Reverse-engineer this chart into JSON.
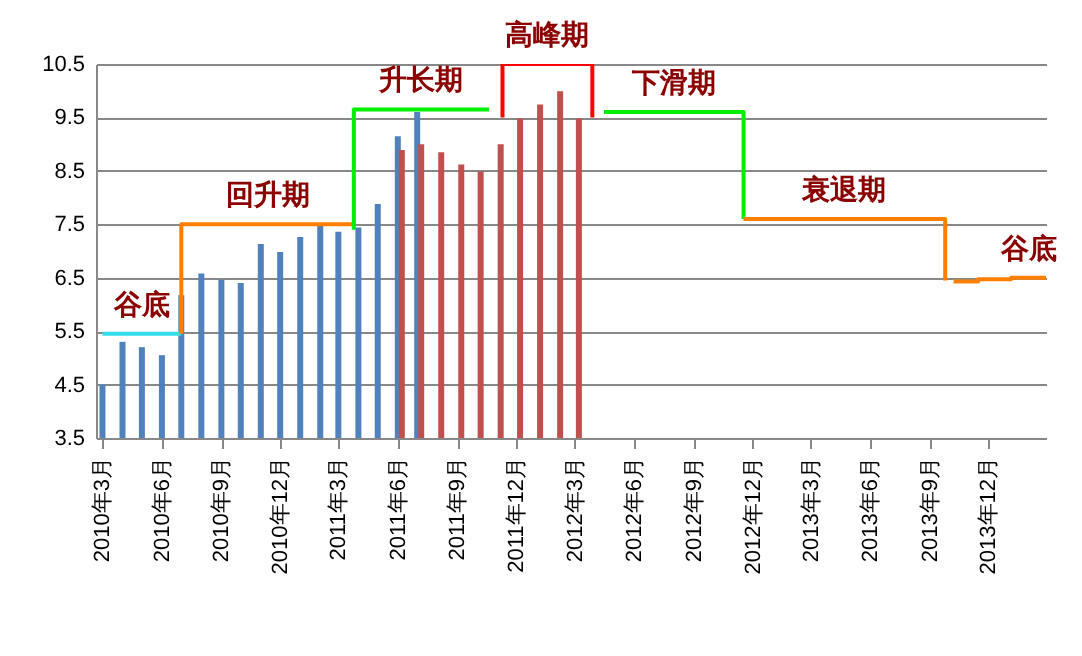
{
  "chart_data": {
    "type": "bar",
    "xlim": [
      "2010-02-19",
      "2014-02-28"
    ],
    "ylim": [
      3.5,
      10.5
    ],
    "yticks": [
      3.5,
      4.5,
      5.5,
      6.5,
      7.5,
      8.5,
      9.5,
      10.5
    ],
    "xticks": [
      {
        "value": "2010-03",
        "label": "2010年3月"
      },
      {
        "value": "2010-06",
        "label": "2010年6月"
      },
      {
        "value": "2010-09",
        "label": "2010年9月"
      },
      {
        "value": "2010-12",
        "label": "2010年12月"
      },
      {
        "value": "2011-03",
        "label": "2011年3月"
      },
      {
        "value": "2011-06",
        "label": "2011年6月"
      },
      {
        "value": "2011-09",
        "label": "2011年9月"
      },
      {
        "value": "2011-12",
        "label": "2011年12月"
      },
      {
        "value": "2012-03",
        "label": "2012年3月"
      },
      {
        "value": "2012-06",
        "label": "2012年6月"
      },
      {
        "value": "2012-09",
        "label": "2012年9月"
      },
      {
        "value": "2012-12",
        "label": "2012年12月"
      },
      {
        "value": "2013-03",
        "label": "2013年3月"
      },
      {
        "value": "2013-06",
        "label": "2013年6月"
      },
      {
        "value": "2013-09",
        "label": "2013年9月"
      },
      {
        "value": "2013-12",
        "label": "2013年12月"
      }
    ],
    "grid": "y",
    "series": [
      {
        "type": "bar",
        "color": "#4f81bd",
        "x": [
          "2010-03",
          "2010-04",
          "2010-05",
          "2010-06",
          "2010-07",
          "2010-08",
          "2010-09",
          "2010-10",
          "2010-11",
          "2010-12",
          "2011-01",
          "2011-02",
          "2011-03",
          "2011-04",
          "2011-05",
          "2011-06",
          "2011-07"
        ],
        "values": [
          4.5,
          5.3,
          5.2,
          5.05,
          6.17,
          6.58,
          6.46,
          6.4,
          7.13,
          6.98,
          7.26,
          7.48,
          7.36,
          7.44,
          7.88,
          9.15,
          9.6
        ]
      },
      {
        "type": "bar",
        "color": "#c0504d",
        "x": [
          "2011-06",
          "2011-07",
          "2011-08",
          "2011-09",
          "2011-10",
          "2011-11",
          "2011-12",
          "2012-01",
          "2012-02",
          "2012-03"
        ],
        "values": [
          8.89,
          9.0,
          8.85,
          8.62,
          8.49,
          9.0,
          9.48,
          9.74,
          9.99,
          9.48
        ]
      },
      {
        "type": "line",
        "name": "谷底",
        "color": "#33ddee",
        "x": [
          "2010-03",
          "2010-07"
        ],
        "values": [
          5.45,
          5.45
        ]
      },
      {
        "type": "line",
        "name": "回升期",
        "color": "#ff8000",
        "x": [
          "2010-07",
          "2010-07",
          "2011-03-25"
        ],
        "values": [
          5.45,
          7.5,
          7.5
        ]
      },
      {
        "type": "line",
        "name": "升长期",
        "color": "#00ee00",
        "x": [
          "2011-03-25",
          "2011-03-25",
          "2011-10-20"
        ],
        "values": [
          7.4,
          9.65,
          9.65
        ]
      },
      {
        "type": "line",
        "name": "高峰期",
        "color": "#ff0000",
        "x": [
          "2011-11-10",
          "2011-11-10",
          "2012-03-28",
          "2012-03-28"
        ],
        "values": [
          9.5,
          10.5,
          10.5,
          9.5
        ]
      },
      {
        "type": "line",
        "name": "下滑期",
        "color": "#00ee00",
        "x": [
          "2012-04-15",
          "2012-11-17",
          "2012-11-17"
        ],
        "values": [
          9.6,
          9.6,
          7.6
        ]
      },
      {
        "type": "line",
        "name": "衰退期",
        "color": "#ff8000",
        "x": [
          "2012-11-17",
          "2013-09-25",
          "2013-09-25"
        ],
        "values": [
          7.6,
          7.6,
          6.45
        ]
      },
      {
        "type": "line",
        "name": "谷底",
        "color": "#ff8000",
        "x": [
          "2013-10-08",
          "2013-11-15",
          "2013-11-15",
          "2014-01-05",
          "2014-01-05",
          "2014-02-28"
        ],
        "values": [
          6.43,
          6.43,
          6.47,
          6.47,
          6.5,
          6.5
        ]
      }
    ]
  }
}
